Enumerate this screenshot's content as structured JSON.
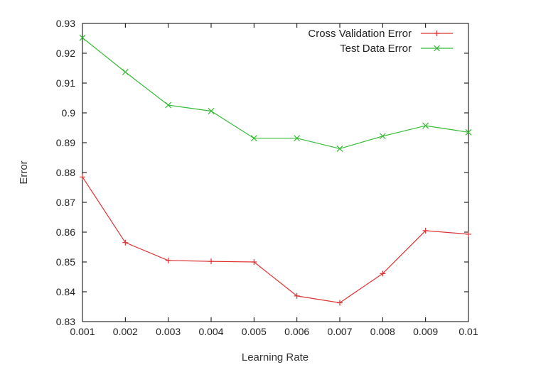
{
  "chart_data": {
    "type": "line",
    "xlabel": "Learning Rate",
    "ylabel": "Error",
    "xlim": [
      0.001,
      0.01
    ],
    "ylim": [
      0.83,
      0.93
    ],
    "grid": false,
    "legend_position": "top-right",
    "x": [
      0.001,
      0.002,
      0.003,
      0.004,
      0.005,
      0.006,
      0.007,
      0.008,
      0.009,
      0.01
    ],
    "x_tick_labels": [
      "0.001",
      "0.002",
      "0.003",
      "0.004",
      "0.005",
      "0.006",
      "0.007",
      "0.008",
      "0.009",
      "0.01"
    ],
    "y_ticks": [
      0.83,
      0.84,
      0.85,
      0.86,
      0.87,
      0.88,
      0.89,
      0.9,
      0.91,
      0.92,
      0.93
    ],
    "y_tick_labels": [
      "0.83",
      "0.84",
      "0.85",
      "0.86",
      "0.87",
      "0.88",
      "0.89",
      "0.9",
      "0.91",
      "0.92",
      "0.93"
    ],
    "series": [
      {
        "name": "Cross Validation Error",
        "color": "#dd3333",
        "marker": "plus",
        "values": [
          0.8785,
          0.8565,
          0.8505,
          0.8502,
          0.85,
          0.8386,
          0.8363,
          0.8461,
          0.8605,
          0.8593
        ]
      },
      {
        "name": "Test Data Error",
        "color": "#33bb33",
        "marker": "cross",
        "values": [
          0.9252,
          0.9137,
          0.9026,
          0.9006,
          0.8915,
          0.8915,
          0.888,
          0.8922,
          0.8957,
          0.8935
        ]
      }
    ]
  }
}
